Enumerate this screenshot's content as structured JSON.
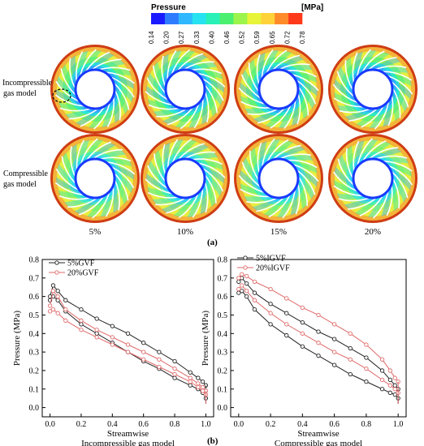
{
  "colorbar": {
    "title": "Pressure",
    "unit": "[MPa]",
    "ticks": [
      "0.14",
      "0.20",
      "0.27",
      "0.33",
      "0.40",
      "0.46",
      "0.52",
      "0.59",
      "0.65",
      "0.72",
      "0.78"
    ],
    "colors": [
      "#1a1aff",
      "#2f7bff",
      "#2fb8ff",
      "#27e2f0",
      "#28f0b6",
      "#4cf070",
      "#9cf44c",
      "#e8f43a",
      "#ffd23a",
      "#ff8a2a",
      "#ff3a1a"
    ]
  },
  "panel_a": {
    "row_labels": [
      [
        "Incompressible",
        "gas model"
      ],
      [
        "Compressible",
        "gas model"
      ]
    ],
    "column_labels": [
      "5%",
      "10%",
      "15%",
      "20%"
    ],
    "panel_label": "(a)"
  },
  "panel_b": {
    "panel_label": "(b)"
  },
  "chart_data": [
    {
      "type": "line",
      "xlabel": "Streamwise",
      "ylabel": "Pressure (MPa)",
      "caption": "Incompressible gas model",
      "xlim": [
        -0.05,
        1.05
      ],
      "ylim": [
        -0.05,
        0.8
      ],
      "xticks": [
        "0.0",
        "0.2",
        "0.4",
        "0.6",
        "0.8",
        "1.0"
      ],
      "yticks": [
        "0.0",
        "0.1",
        "0.2",
        "0.3",
        "0.4",
        "0.5",
        "0.6",
        "0.7",
        "0.8"
      ],
      "series": [
        {
          "name": "5%GVF",
          "color": "#222222",
          "upper": {
            "x": [
              0.0,
              0.02,
              0.05,
              0.1,
              0.2,
              0.3,
              0.4,
              0.5,
              0.6,
              0.7,
              0.8,
              0.9,
              0.95,
              0.98,
              1.0
            ],
            "y": [
              0.6,
              0.66,
              0.63,
              0.58,
              0.53,
              0.48,
              0.44,
              0.4,
              0.35,
              0.3,
              0.25,
              0.19,
              0.16,
              0.14,
              0.12
            ]
          },
          "lower": {
            "x": [
              0.0,
              0.02,
              0.05,
              0.1,
              0.2,
              0.3,
              0.4,
              0.5,
              0.6,
              0.7,
              0.8,
              0.9,
              0.95,
              0.98,
              1.0
            ],
            "y": [
              0.58,
              0.6,
              0.58,
              0.52,
              0.45,
              0.4,
              0.35,
              0.3,
              0.25,
              0.21,
              0.16,
              0.12,
              0.1,
              0.08,
              0.05
            ]
          }
        },
        {
          "name": "20%GVF",
          "color": "#e06a6a",
          "upper": {
            "x": [
              0.0,
              0.02,
              0.05,
              0.1,
              0.2,
              0.3,
              0.4,
              0.5,
              0.6,
              0.7,
              0.8,
              0.9,
              0.95,
              0.98,
              1.0
            ],
            "y": [
              0.55,
              0.63,
              0.6,
              0.53,
              0.47,
              0.42,
              0.38,
              0.34,
              0.3,
              0.26,
              0.21,
              0.16,
              0.13,
              0.11,
              0.09
            ]
          },
          "lower": {
            "x": [
              0.0,
              0.02,
              0.05,
              0.1,
              0.2,
              0.3,
              0.4,
              0.5,
              0.6,
              0.7,
              0.8,
              0.9,
              0.95,
              0.98,
              1.0
            ],
            "y": [
              0.52,
              0.53,
              0.51,
              0.47,
              0.42,
              0.38,
              0.34,
              0.3,
              0.26,
              0.22,
              0.18,
              0.14,
              0.11,
              0.09,
              0.07
            ]
          }
        }
      ]
    },
    {
      "type": "line",
      "xlabel": "Streamwise",
      "ylabel": "Pressure (MPa)",
      "caption": "Compressible gas model",
      "xlim": [
        -0.05,
        1.05
      ],
      "ylim": [
        -0.05,
        0.8
      ],
      "xticks": [
        "0.0",
        "0.2",
        "0.4",
        "0.6",
        "0.8",
        "1.0"
      ],
      "yticks": [
        "0.0",
        "0.1",
        "0.2",
        "0.3",
        "0.4",
        "0.5",
        "0.6",
        "0.7",
        "0.8"
      ],
      "series": [
        {
          "name": "5%IGVF",
          "color": "#222222",
          "upper": {
            "x": [
              0.0,
              0.02,
              0.05,
              0.1,
              0.2,
              0.3,
              0.4,
              0.5,
              0.6,
              0.7,
              0.8,
              0.9,
              0.95,
              0.98,
              1.0
            ],
            "y": [
              0.68,
              0.7,
              0.67,
              0.62,
              0.56,
              0.51,
              0.46,
              0.41,
              0.37,
              0.32,
              0.27,
              0.2,
              0.15,
              0.12,
              0.1
            ]
          },
          "lower": {
            "x": [
              0.0,
              0.02,
              0.05,
              0.1,
              0.2,
              0.3,
              0.4,
              0.5,
              0.6,
              0.7,
              0.8,
              0.9,
              0.95,
              0.98,
              1.0
            ],
            "y": [
              0.62,
              0.63,
              0.6,
              0.53,
              0.45,
              0.39,
              0.33,
              0.28,
              0.23,
              0.18,
              0.14,
              0.1,
              0.08,
              0.07,
              0.05
            ]
          }
        },
        {
          "name": "20%IGVF",
          "color": "#e06a6a",
          "upper": {
            "x": [
              0.0,
              0.02,
              0.05,
              0.1,
              0.2,
              0.3,
              0.4,
              0.5,
              0.6,
              0.7,
              0.8,
              0.9,
              0.95,
              0.98,
              1.0
            ],
            "y": [
              0.7,
              0.72,
              0.71,
              0.68,
              0.64,
              0.59,
              0.54,
              0.5,
              0.45,
              0.4,
              0.34,
              0.26,
              0.2,
              0.16,
              0.14
            ]
          },
          "lower": {
            "x": [
              0.0,
              0.02,
              0.05,
              0.1,
              0.2,
              0.3,
              0.4,
              0.5,
              0.6,
              0.7,
              0.8,
              0.9,
              0.95,
              0.98,
              1.0
            ],
            "y": [
              0.64,
              0.66,
              0.63,
              0.58,
              0.51,
              0.45,
              0.4,
              0.35,
              0.3,
              0.26,
              0.21,
              0.15,
              0.12,
              0.1,
              0.08
            ]
          }
        }
      ]
    }
  ]
}
